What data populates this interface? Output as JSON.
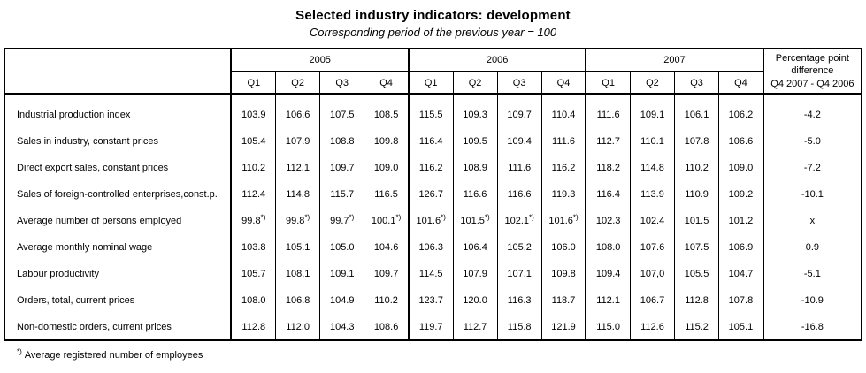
{
  "header": {
    "title": "Selected industry indicators: development",
    "subtitle": "Corresponding period of the previous year = 100"
  },
  "table": {
    "years": [
      "2005",
      "2006",
      "2007"
    ],
    "quarters": [
      "Q1",
      "Q2",
      "Q3",
      "Q4"
    ],
    "diff_header": "Percentage point\ndifference\nQ4 2007 - Q4 2006",
    "rows": [
      {
        "label": "Industrial production index",
        "q": [
          "103.9",
          "106.6",
          "107.5",
          "108.5",
          "115.5",
          "109.3",
          "109.7",
          "110.4",
          "111.6",
          "109.1",
          "106.1",
          "106.2"
        ],
        "diff": "-4.2"
      },
      {
        "label": "Sales in industry, constant prices",
        "q": [
          "105.4",
          "107.9",
          "108.8",
          "109.8",
          "116.4",
          "109.5",
          "109.4",
          "111.6",
          "112.7",
          "110.1",
          "107.8",
          "106.6"
        ],
        "diff": "-5.0"
      },
      {
        "label": "Direct export sales, constant prices",
        "q": [
          "110.2",
          "112.1",
          "109.7",
          "109.0",
          "116.2",
          "108.9",
          "111.6",
          "116.2",
          "118.2",
          "114.8",
          "110.2",
          "109.0"
        ],
        "diff": "-7.2"
      },
      {
        "label": "Sales of foreign-controlled enterprises,const.p.",
        "q": [
          "112.4",
          "114.8",
          "115.7",
          "116.5",
          "126.7",
          "116.6",
          "116.6",
          "119.3",
          "116.4",
          "113.9",
          "110.9",
          "109.2"
        ],
        "diff": "-10.1"
      },
      {
        "label": "Average number of persons employed",
        "q": [
          "99.8*)",
          "99.8*)",
          "99.7*)",
          "100.1*)",
          "101.6*)",
          "101.5*)",
          "102.1*)",
          "101.6*)",
          "102.3",
          "102.4",
          "101.5",
          "101.2"
        ],
        "diff": "x"
      },
      {
        "label": "Average monthly nominal wage",
        "q": [
          "103.8",
          "105.1",
          "105.0",
          "104.6",
          "106.3",
          "106.4",
          "105.2",
          "106.0",
          "108.0",
          "107.6",
          "107.5",
          "106.9"
        ],
        "diff": "0.9"
      },
      {
        "label": "Labour productivity",
        "q": [
          "105.7",
          "108.1",
          "109.1",
          "109.7",
          "114.5",
          "107.9",
          "107.1",
          "109.8",
          "109.4",
          "107,0",
          "105.5",
          "104.7"
        ],
        "diff": "-5.1"
      },
      {
        "label": "Orders, total, current prices",
        "q": [
          "108.0",
          "106.8",
          "104.9",
          "110.2",
          "123.7",
          "120.0",
          "116.3",
          "118.7",
          "112.1",
          "106.7",
          "112.8",
          "107.8"
        ],
        "diff": "-10.9"
      },
      {
        "label": "Non-domestic orders, current prices",
        "q": [
          "112.8",
          "112.0",
          "104.3",
          "108.6",
          "119.7",
          "112.7",
          "115.8",
          "121.9",
          "115.0",
          "112.6",
          "115.2",
          "105.1"
        ],
        "diff": "-16.8"
      }
    ]
  },
  "footnote": {
    "marker": "*)",
    "text": "Average registered number of employees"
  }
}
